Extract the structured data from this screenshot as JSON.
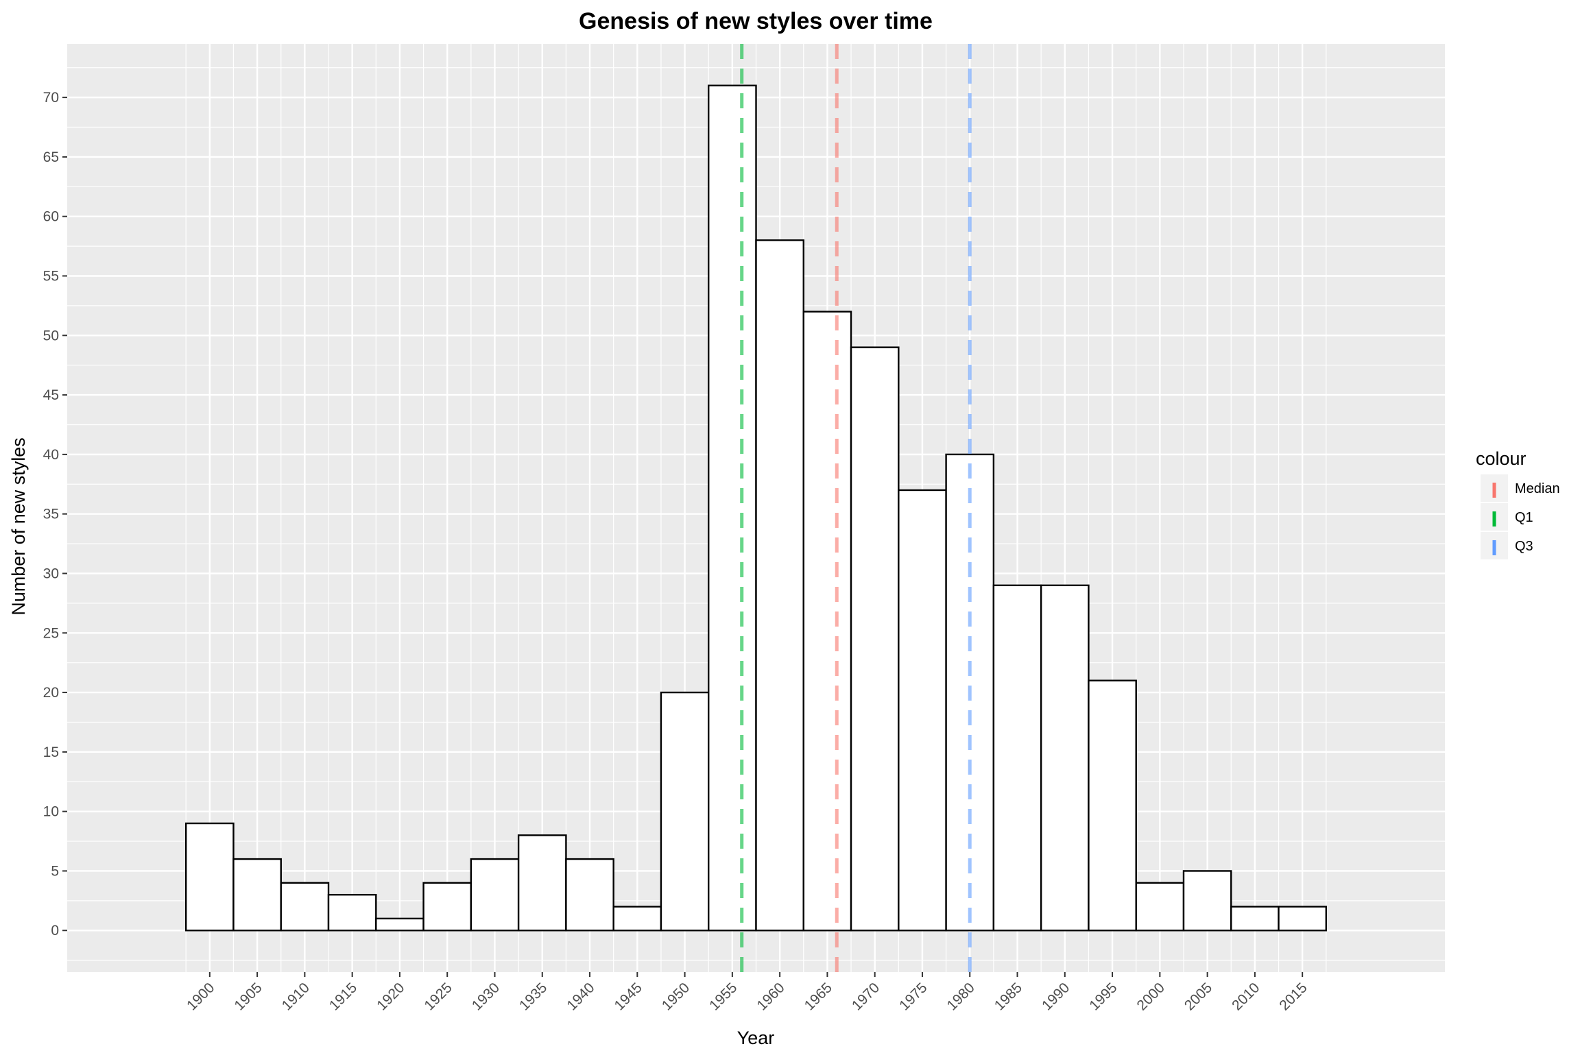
{
  "chart_data": {
    "type": "bar",
    "title": "Genesis of new styles over time",
    "xlabel": "Year",
    "ylabel": "Number of new styles",
    "x_ticks": [
      1900,
      1905,
      1910,
      1915,
      1920,
      1925,
      1930,
      1935,
      1940,
      1945,
      1950,
      1955,
      1960,
      1965,
      1970,
      1975,
      1980,
      1985,
      1990,
      1995,
      2000,
      2005,
      2010,
      2015
    ],
    "y_ticks": [
      0,
      5,
      10,
      15,
      20,
      25,
      30,
      35,
      40,
      45,
      50,
      55,
      60,
      65,
      70
    ],
    "xlim": [
      1885,
      2030
    ],
    "ylim": [
      -3.5,
      74.5
    ],
    "bin_width": 5,
    "bins": [
      {
        "center": 1900,
        "count": 9
      },
      {
        "center": 1905,
        "count": 6
      },
      {
        "center": 1910,
        "count": 4
      },
      {
        "center": 1915,
        "count": 3
      },
      {
        "center": 1920,
        "count": 1
      },
      {
        "center": 1925,
        "count": 4
      },
      {
        "center": 1930,
        "count": 6
      },
      {
        "center": 1935,
        "count": 8
      },
      {
        "center": 1940,
        "count": 6
      },
      {
        "center": 1945,
        "count": 2
      },
      {
        "center": 1950,
        "count": 20
      },
      {
        "center": 1955,
        "count": 71
      },
      {
        "center": 1960,
        "count": 58
      },
      {
        "center": 1965,
        "count": 52
      },
      {
        "center": 1970,
        "count": 49
      },
      {
        "center": 1975,
        "count": 37
      },
      {
        "center": 1980,
        "count": 40
      },
      {
        "center": 1985,
        "count": 29
      },
      {
        "center": 1990,
        "count": 29
      },
      {
        "center": 1995,
        "count": 21
      },
      {
        "center": 2000,
        "count": 4
      },
      {
        "center": 2005,
        "count": 5
      },
      {
        "center": 2010,
        "count": 2
      },
      {
        "center": 2015,
        "count": 2
      }
    ],
    "vlines": [
      {
        "name": "Median",
        "x": 1966,
        "color": "#F8766D"
      },
      {
        "name": "Q1",
        "x": 1956,
        "color": "#00BA38"
      },
      {
        "name": "Q3",
        "x": 1980,
        "color": "#619CFF"
      }
    ],
    "grid": true,
    "legend": {
      "title": "colour",
      "placement": "right",
      "entries": [
        {
          "label": "Median",
          "color": "#F8766D"
        },
        {
          "label": "Q1",
          "color": "#00BA38"
        },
        {
          "label": "Q3",
          "color": "#619CFF"
        }
      ]
    },
    "colors": {
      "panel": "#EBEBEB",
      "grid": "#FFFFFF",
      "bar_fill": "#FFFFFF",
      "bar_outline": "#000000"
    }
  }
}
